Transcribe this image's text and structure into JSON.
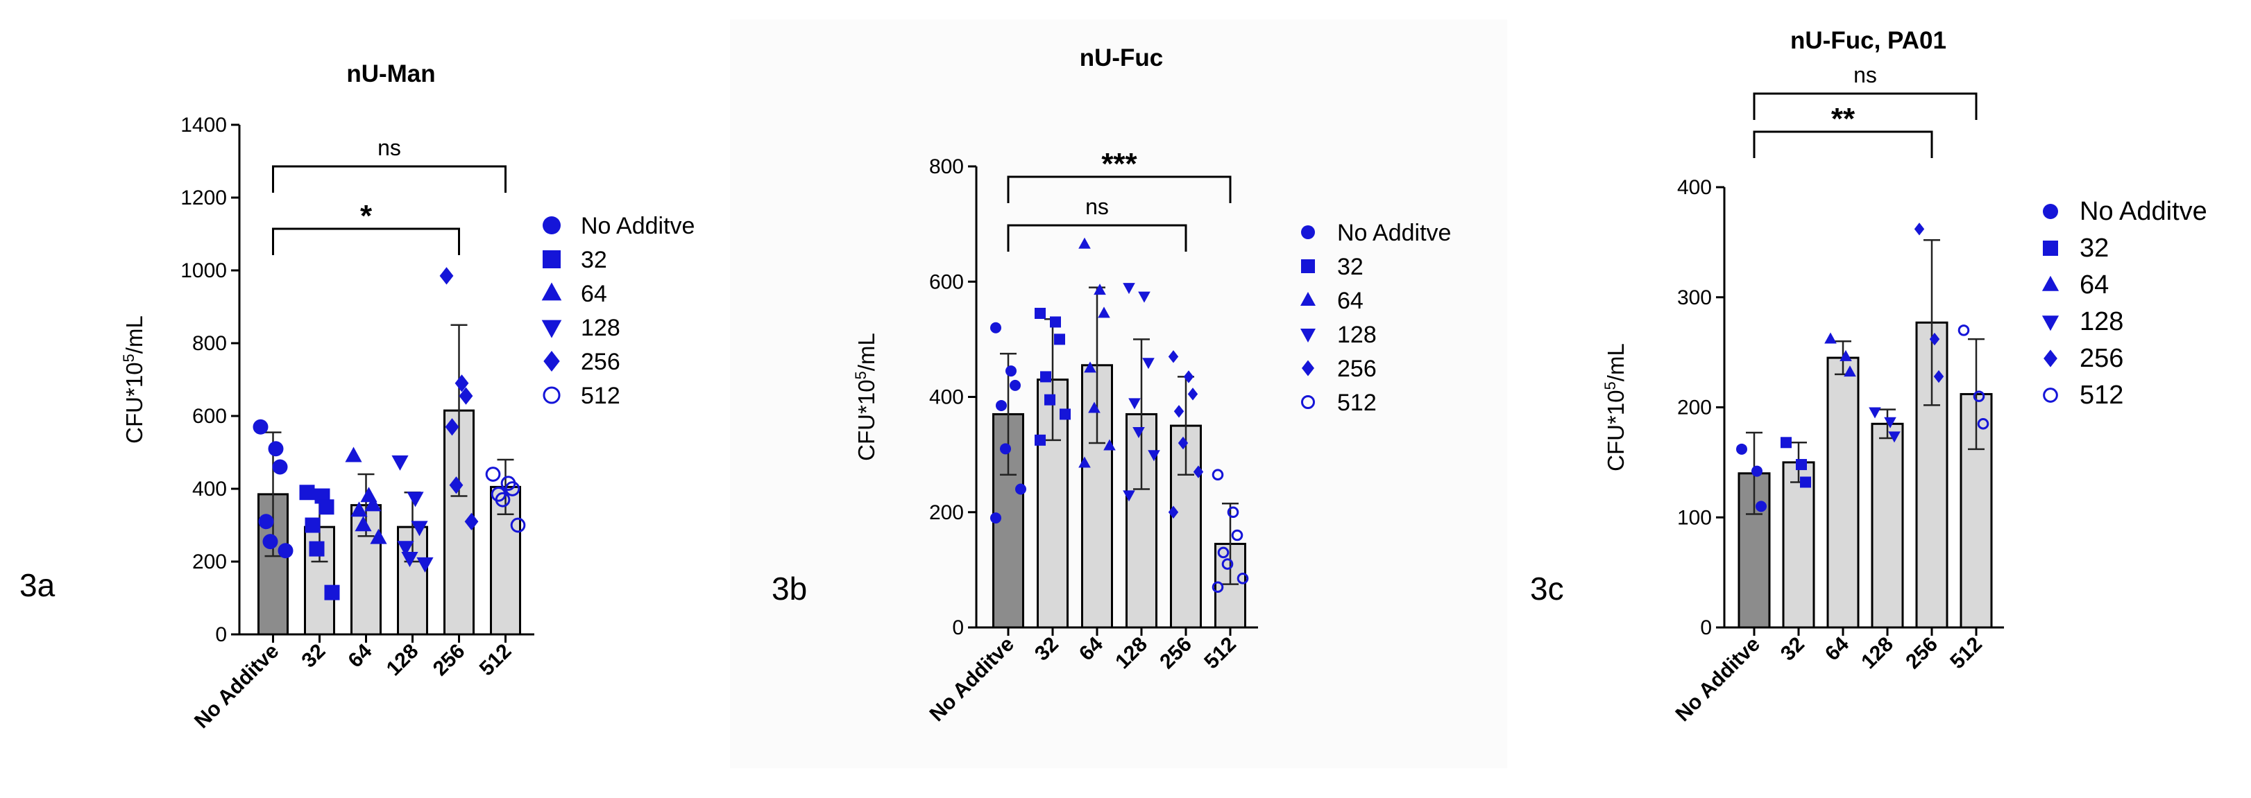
{
  "colors": {
    "marker": "#1515d8",
    "control_bar": "#8c8c8c",
    "treatment_bar": "#d9d9d9",
    "axis": "#000000",
    "panel_bg": "#fbfbfb"
  },
  "chart_data": [
    {
      "type": "bar",
      "panel_label": "3a",
      "title": "nU-Man",
      "ylabel": "CFU*10⁵/mL",
      "xlabel": "",
      "ylim": [
        0,
        1400
      ],
      "yticks": [
        0,
        200,
        400,
        600,
        800,
        1000,
        1200,
        1400
      ],
      "categories": [
        "No Additve",
        "32",
        "64",
        "128",
        "256",
        "512"
      ],
      "values": [
        385,
        295,
        355,
        295,
        615,
        405
      ],
      "errors": [
        170,
        95,
        85,
        95,
        235,
        75
      ],
      "points": [
        [
          570,
          510,
          460,
          310,
          255,
          230
        ],
        [
          390,
          380,
          350,
          300,
          235,
          115
        ],
        [
          490,
          380,
          355,
          340,
          300,
          265
        ],
        [
          475,
          375,
          295,
          240,
          210,
          195
        ],
        [
          985,
          690,
          655,
          570,
          410,
          310
        ],
        [
          440,
          415,
          400,
          385,
          370,
          300
        ]
      ],
      "marker_shapes": [
        "circle",
        "square",
        "triangle-up",
        "triangle-down",
        "diamond",
        "open-circle"
      ],
      "legend": [
        "No Additve",
        "32",
        "64",
        "128",
        "256",
        "512"
      ],
      "brackets": [
        {
          "from": "No Additve",
          "to": "256",
          "label": "*"
        },
        {
          "from": "No Additve",
          "to": "512",
          "label": "ns"
        }
      ]
    },
    {
      "type": "bar",
      "panel_label": "3b",
      "title": "nU-Fuc",
      "ylabel": "CFU*10⁵/mL",
      "xlabel": "",
      "ylim": [
        0,
        800
      ],
      "yticks": [
        0,
        200,
        400,
        600,
        800
      ],
      "categories": [
        "No Additve",
        "32",
        "64",
        "128",
        "256",
        "512"
      ],
      "values": [
        370,
        430,
        455,
        370,
        350,
        145
      ],
      "errors": [
        105,
        105,
        135,
        130,
        85,
        70
      ],
      "points": [
        [
          520,
          445,
          420,
          385,
          310,
          240,
          190
        ],
        [
          545,
          530,
          500,
          435,
          395,
          370,
          325
        ],
        [
          665,
          585,
          545,
          450,
          380,
          315,
          285
        ],
        [
          590,
          575,
          460,
          390,
          340,
          300,
          230
        ],
        [
          470,
          435,
          405,
          375,
          320,
          270,
          200
        ],
        [
          265,
          200,
          160,
          130,
          110,
          85,
          70
        ]
      ],
      "marker_shapes": [
        "circle",
        "square",
        "triangle-up",
        "triangle-down",
        "diamond",
        "open-circle"
      ],
      "legend": [
        "No Additve",
        "32",
        "64",
        "128",
        "256",
        "512"
      ],
      "brackets": [
        {
          "from": "No Additve",
          "to": "256",
          "label": "ns"
        },
        {
          "from": "No Additve",
          "to": "512",
          "label": "***"
        }
      ]
    },
    {
      "type": "bar",
      "panel_label": "3c",
      "title": "nU-Fuc, PA01",
      "ylabel": "CFU*10⁵/mL",
      "xlabel": "",
      "ylim": [
        0,
        400
      ],
      "yticks": [
        0,
        100,
        200,
        300,
        400
      ],
      "categories": [
        "No Additve",
        "32",
        "64",
        "128",
        "256",
        "512"
      ],
      "values": [
        140,
        150,
        245,
        185,
        277,
        212
      ],
      "errors": [
        37,
        18,
        15,
        13,
        75,
        50
      ],
      "points": [
        [
          162,
          142,
          110
        ],
        [
          168,
          148,
          132
        ],
        [
          262,
          246,
          232
        ],
        [
          196,
          187,
          174
        ],
        [
          362,
          262,
          228
        ],
        [
          270,
          210,
          185
        ]
      ],
      "marker_shapes": [
        "circle",
        "square",
        "triangle-up",
        "triangle-down",
        "diamond",
        "open-circle"
      ],
      "legend": [
        "No Additve",
        "32",
        "64",
        "128",
        "256",
        "512"
      ],
      "brackets": [
        {
          "from": "No Additve",
          "to": "256",
          "label": "**"
        },
        {
          "from": "No Additve",
          "to": "512",
          "label": "ns"
        }
      ]
    }
  ]
}
